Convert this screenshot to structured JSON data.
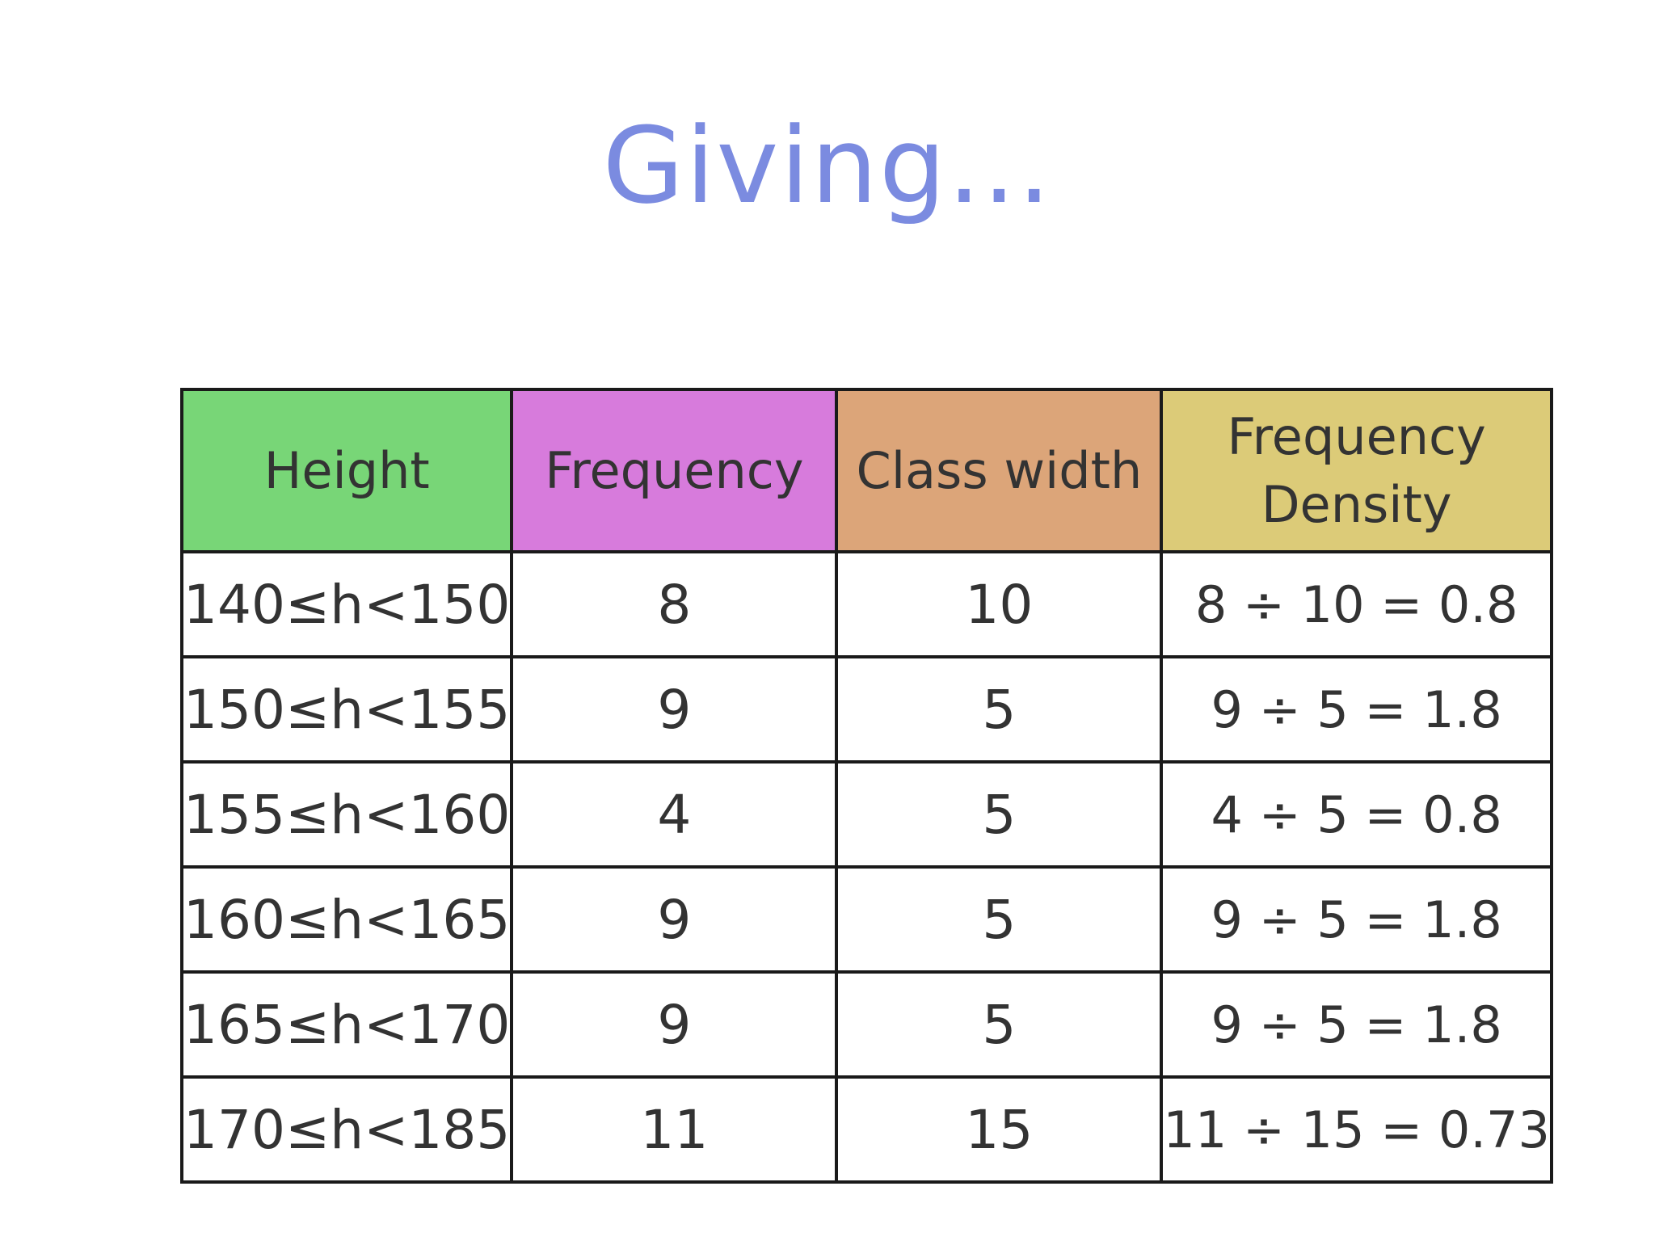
{
  "title": "Giving...",
  "colors": {
    "title": "#7b8be0",
    "header_height": "#78d677",
    "header_frequency": "#d77bdc",
    "header_class_width": "#dca579",
    "header_frequency_density": "#dccb78"
  },
  "table": {
    "headers": {
      "height": "Height",
      "frequency": "Frequency",
      "class_width": "Class width",
      "density_line1": "Frequency",
      "density_line2": "Density"
    },
    "rows": [
      {
        "height": "140≤h<150",
        "frequency": "8",
        "class_width": "10",
        "density": "8 ÷ 10 = 0.8"
      },
      {
        "height": "150≤h<155",
        "frequency": "9",
        "class_width": "5",
        "density": "9 ÷ 5 = 1.8"
      },
      {
        "height": "155≤h<160",
        "frequency": "4",
        "class_width": "5",
        "density": "4 ÷ 5 = 0.8"
      },
      {
        "height": "160≤h<165",
        "frequency": "9",
        "class_width": "5",
        "density": "9 ÷ 5 = 1.8"
      },
      {
        "height": "165≤h<170",
        "frequency": "9",
        "class_width": "5",
        "density": "9 ÷ 5 = 1.8"
      },
      {
        "height": "170≤h<185",
        "frequency": "11",
        "class_width": "15",
        "density": "11 ÷ 15 = 0.73"
      }
    ]
  }
}
